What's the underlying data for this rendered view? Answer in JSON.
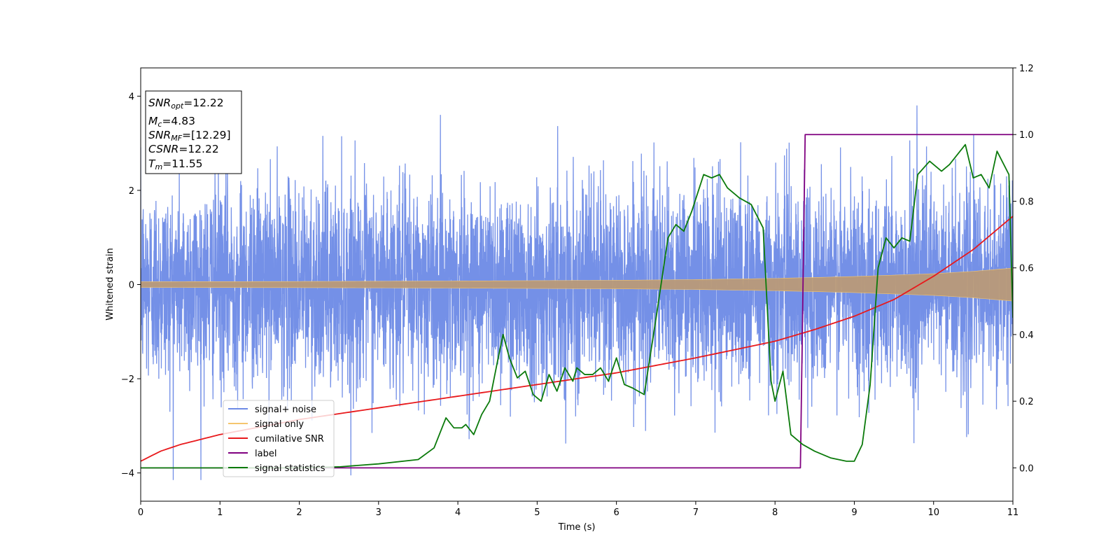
{
  "chart_data": {
    "type": "line",
    "xlabel": "Time (s)",
    "ylabel": "Whitened strain",
    "xlim": [
      0,
      11
    ],
    "ylim": [
      -4.6,
      4.6
    ],
    "y2lim": [
      -0.1,
      1.2
    ],
    "x_ticks": [
      0,
      1,
      2,
      3,
      4,
      5,
      6,
      7,
      8,
      9,
      10,
      11
    ],
    "y_ticks": [
      -4,
      -2,
      0,
      2,
      4
    ],
    "y2_ticks": [
      0.0,
      0.2,
      0.4,
      0.6,
      0.8,
      1.0,
      1.2
    ],
    "legend_position": "lower-left",
    "colors": {
      "noise": "#6d8ae6",
      "signal": "#f5c66e",
      "signal_overlay": "#b99a78",
      "cumulative_snr": "#e8191c",
      "label": "#800080",
      "statistics": "#0b7a0b"
    },
    "info_box": {
      "snr_opt": {
        "base": "SNR",
        "sub": "opt",
        "value": "=12.22"
      },
      "mc": {
        "base": "M",
        "sub": "c",
        "value": "=4.83"
      },
      "snr_mf": {
        "base": "SNR",
        "sub": "MF",
        "value": "=[12.29]"
      },
      "csnr": {
        "base": "CSNR",
        "value": "=12.22"
      },
      "tm": {
        "base": "T",
        "sub": "m",
        "value": "=11.55"
      }
    },
    "series": [
      {
        "name": "signal+ noise",
        "axis": "left",
        "style": "dense noise, approx. amplitude envelope",
        "envelope": {
          "x": [
            0,
            11
          ],
          "upper_typical": [
            2.3,
            2.3
          ],
          "lower_typical": [
            -2.3,
            -2.3
          ],
          "max": 4.17,
          "min": -4.15
        }
      },
      {
        "name": "signal only",
        "axis": "left",
        "style": "chirp envelope",
        "amplitude": {
          "x": [
            0,
            2,
            4,
            6,
            7,
            8,
            9,
            10,
            10.5,
            11
          ],
          "values": [
            0.06,
            0.065,
            0.075,
            0.09,
            0.105,
            0.13,
            0.17,
            0.23,
            0.28,
            0.35
          ]
        }
      },
      {
        "name": "cumilative SNR",
        "axis": "right",
        "x": [
          0,
          0.25,
          0.5,
          1,
          2,
          3,
          4,
          5,
          6,
          7,
          8,
          8.5,
          9,
          9.5,
          10,
          10.5,
          11
        ],
        "values": [
          0.02,
          0.05,
          0.07,
          0.1,
          0.145,
          0.18,
          0.215,
          0.25,
          0.285,
          0.33,
          0.38,
          0.415,
          0.455,
          0.505,
          0.575,
          0.655,
          0.755
        ]
      },
      {
        "name": "label",
        "axis": "right",
        "x": [
          0,
          8.32,
          8.38,
          11
        ],
        "values": [
          0,
          0,
          1,
          1
        ]
      },
      {
        "name": "signal statistics",
        "axis": "right",
        "x": [
          0,
          1,
          2,
          2.5,
          3,
          3.5,
          3.7,
          3.85,
          3.95,
          4.05,
          4.1,
          4.2,
          4.3,
          4.4,
          4.5,
          4.57,
          4.65,
          4.75,
          4.85,
          4.95,
          5.05,
          5.15,
          5.25,
          5.35,
          5.45,
          5.5,
          5.6,
          5.7,
          5.8,
          5.9,
          6.0,
          6.1,
          6.2,
          6.35,
          6.5,
          6.65,
          6.75,
          6.85,
          6.95,
          7.1,
          7.2,
          7.3,
          7.4,
          7.55,
          7.7,
          7.85,
          7.95,
          8.0,
          8.1,
          8.2,
          8.35,
          8.5,
          8.7,
          8.9,
          9.0,
          9.1,
          9.2,
          9.3,
          9.4,
          9.5,
          9.6,
          9.7,
          9.8,
          9.95,
          10.1,
          10.2,
          10.3,
          10.4,
          10.5,
          10.6,
          10.7,
          10.8,
          10.95,
          11.0
        ],
        "values": [
          0.0,
          0.0,
          0.0,
          0.003,
          0.012,
          0.025,
          0.06,
          0.15,
          0.12,
          0.12,
          0.13,
          0.1,
          0.16,
          0.2,
          0.32,
          0.4,
          0.33,
          0.27,
          0.29,
          0.22,
          0.2,
          0.28,
          0.23,
          0.3,
          0.26,
          0.3,
          0.28,
          0.28,
          0.3,
          0.26,
          0.33,
          0.25,
          0.24,
          0.22,
          0.45,
          0.69,
          0.73,
          0.71,
          0.77,
          0.88,
          0.87,
          0.88,
          0.84,
          0.81,
          0.79,
          0.72,
          0.26,
          0.2,
          0.29,
          0.1,
          0.07,
          0.05,
          0.03,
          0.02,
          0.02,
          0.07,
          0.25,
          0.6,
          0.69,
          0.66,
          0.69,
          0.68,
          0.88,
          0.92,
          0.89,
          0.91,
          0.94,
          0.97,
          0.87,
          0.88,
          0.84,
          0.95,
          0.88,
          0.45
        ]
      }
    ]
  }
}
